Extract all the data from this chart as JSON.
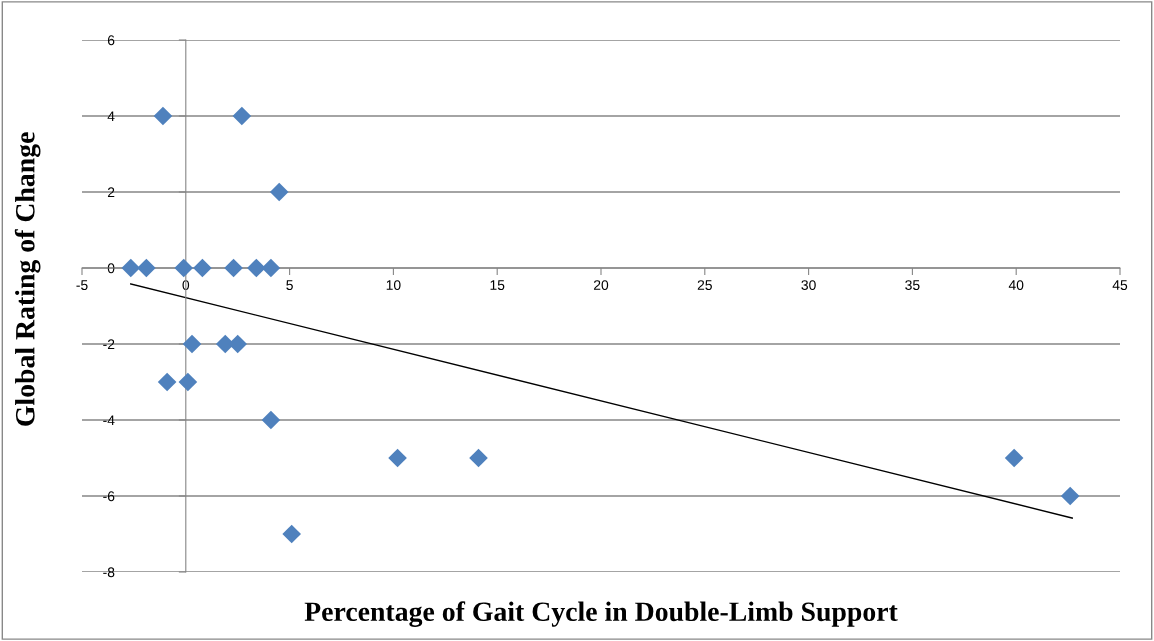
{
  "chart_data": {
    "type": "scatter",
    "xlabel": "Percentage of Gait Cycle in Double-Limb Support",
    "ylabel": "Global Rating of Change",
    "xlim": [
      -5,
      45
    ],
    "xticks": [
      -5,
      0,
      5,
      10,
      15,
      20,
      25,
      30,
      35,
      40,
      45
    ],
    "ylim": [
      -8,
      6
    ],
    "yticks": [
      -8,
      -6,
      -4,
      -2,
      0,
      2,
      4,
      6
    ],
    "grid": "y",
    "legend": false,
    "series": [
      {
        "marker": "diamond",
        "color": "#4f81bd",
        "x": [
          -2.65,
          -1.9,
          -1.1,
          2.7,
          4.5,
          -0.1,
          0.8,
          2.3,
          3.4,
          4.1,
          0.3,
          1.9,
          2.5,
          -0.9,
          0.1,
          4.1,
          5.1,
          10.2,
          14.1,
          39.9,
          42.6
        ],
        "values": [
          0,
          0,
          4,
          4,
          2,
          0,
          0,
          0,
          0,
          0,
          -2,
          -2,
          -2,
          -3,
          -3,
          -4,
          -7,
          -5,
          -5,
          -5,
          -6
        ]
      },
      {
        "type": "line",
        "marker": "none",
        "color": "#000000",
        "x": [
          -2.65,
          42.7
        ],
        "values": [
          -0.42,
          -6.58
        ]
      }
    ]
  }
}
